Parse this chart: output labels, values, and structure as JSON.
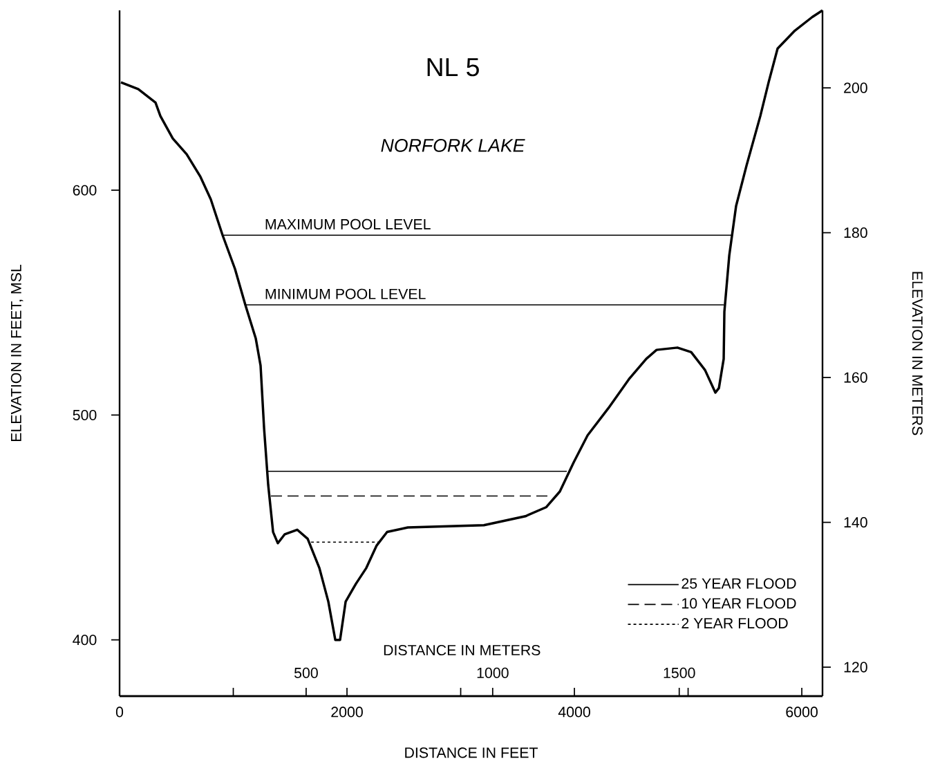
{
  "chart_data": {
    "type": "line",
    "title": "NL 5",
    "subtitle": "NORFORK LAKE",
    "xlabel": "DISTANCE IN FEET",
    "ylabel": "ELEVATION IN FEET, MSL",
    "y2label": "ELEVATION IN METERS",
    "x2label": "DISTANCE IN METERS",
    "xlim": [
      0,
      6182
    ],
    "xticks": [
      0,
      {
        "value": 1000,
        "label": null
      },
      2000,
      {
        "value": 3000,
        "label": null
      },
      4000,
      {
        "value": 5000,
        "label": null
      },
      6000
    ],
    "ylim": [
      375,
      680
    ],
    "yticks": [
      400,
      500,
      600
    ],
    "y2lim": [
      116,
      210.7
    ],
    "y2ticks": [
      120,
      140,
      160,
      180,
      200
    ],
    "x2lim": [
      0,
      1884
    ],
    "x2ticks": [
      500,
      1000,
      1500
    ],
    "legend": "bottom right",
    "series": [
      {
        "color": "#000000",
        "x": [
          12,
          164,
          316,
          359,
          468,
          590,
          711,
          802,
          906,
          1015,
          1106,
          1198,
          1240,
          1271,
          1307,
          1350,
          1392,
          1453,
          1562,
          1654,
          1757,
          1836,
          1897,
          1939,
          1988,
          2079,
          2170,
          2261,
          2353,
          2535,
          3204,
          3569,
          3751,
          3872,
          3994,
          4116,
          4298,
          4480,
          4632,
          4723,
          4906,
          5027,
          5149,
          5240,
          5271,
          5313,
          5319,
          5362,
          5422,
          5514,
          5635,
          5708,
          5787,
          5939,
          6091,
          6182
        ],
        "values": [
          648,
          645,
          639,
          633,
          623,
          616,
          606,
          596,
          580,
          565,
          549,
          534,
          522,
          494,
          469,
          448,
          443,
          447,
          449,
          445,
          432,
          417,
          400,
          400,
          417,
          425,
          432,
          442,
          448,
          450,
          451,
          455,
          459,
          466,
          479,
          491,
          503,
          516,
          525,
          529,
          530,
          528,
          520,
          510,
          512,
          525,
          546,
          571,
          593,
          611,
          633,
          648,
          663,
          671,
          677,
          680
        ]
      },
      {
        "color": "#000000",
        "x": [
          906,
          5380
        ],
        "values": [
          580,
          580
        ]
      },
      {
        "color": "#000000",
        "x": [
          1106,
          5313
        ],
        "values": [
          549,
          549
        ]
      },
      {
        "name": "25 YEAR FLOOD",
        "color": "#000000",
        "line_style": "solid",
        "x": [
          1295,
          3933
        ],
        "values": [
          475,
          475
        ]
      },
      {
        "name": "10 YEAR FLOOD",
        "color": "#000000",
        "line_style": "dashed",
        "x": [
          1331,
          3800
        ],
        "values": [
          464,
          464
        ]
      },
      {
        "name": "2 YEAR FLOOD",
        "color": "#000000",
        "line_style": "dotted",
        "x": [
          1684,
          2280
        ],
        "values": [
          443.5,
          443.5
        ]
      }
    ],
    "annotations": [
      {
        "text": "MAXIMUM POOL LEVEL",
        "x": 1258,
        "y": 580
      },
      {
        "text": "MINIMUM POOL LEVEL",
        "x": 1258,
        "y": 549
      }
    ]
  }
}
